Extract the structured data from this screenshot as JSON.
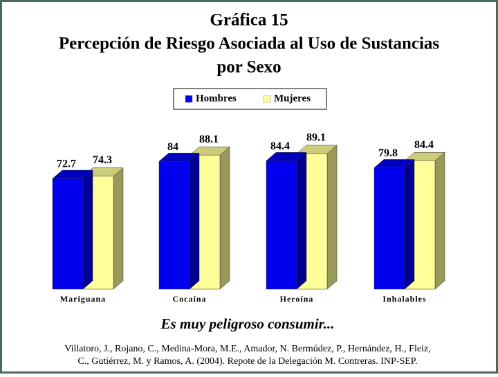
{
  "chart_data": {
    "type": "bar3d",
    "title": [
      "Gráfica 15",
      "Percepción de Riesgo Asociada al Uso de Sustancias",
      "por Sexo"
    ],
    "categories": [
      "Mariguana",
      "Cocaína",
      "Heroína",
      "Inhalables"
    ],
    "series": [
      {
        "name": "Hombres",
        "color": "#0000ee",
        "values": [
          72.7,
          84,
          84.4,
          79.8
        ]
      },
      {
        "name": "Mujeres",
        "color": "#ffff99",
        "values": [
          74.3,
          88.1,
          89.1,
          84.4
        ]
      }
    ],
    "annotation": "Es muy peligroso consumir...",
    "source": [
      "Villatoro, J., Rojano, C., Medina-Mora, M.E., Amador, N. Bermúdez, P., Hernández, H., Fleiz,",
      "C., Gutiérrez, M. y Ramos, A. (2004). Repote de la Delegación M. Contreras. INP-SEP."
    ]
  }
}
